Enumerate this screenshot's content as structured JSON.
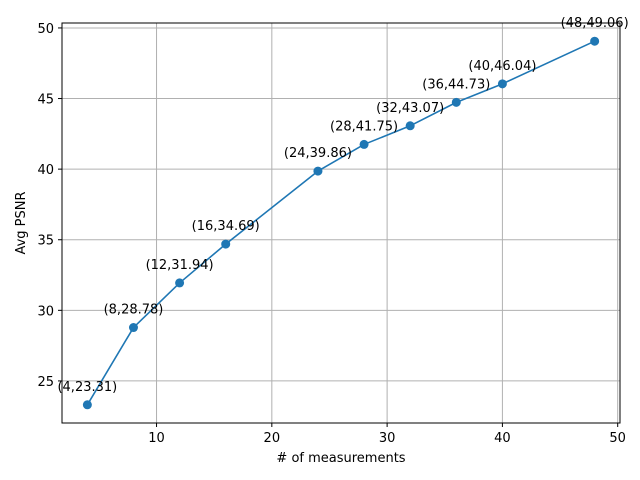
{
  "chart_data": {
    "type": "line",
    "title": "",
    "xlabel": "# of measurements",
    "ylabel": "Avg PSNR",
    "xlim": [
      1.8,
      50.2
    ],
    "ylim": [
      22.02,
      50.35
    ],
    "xticks": [
      10,
      20,
      30,
      40,
      50
    ],
    "yticks": [
      25,
      30,
      35,
      40,
      45,
      50
    ],
    "grid": true,
    "legend": "none",
    "series": [
      {
        "color": "#1f77b4",
        "marker": "circle",
        "points": [
          {
            "x": 4,
            "y": 23.31,
            "label": "(4,23.31)"
          },
          {
            "x": 8,
            "y": 28.78,
            "label": "(8,28.78)"
          },
          {
            "x": 12,
            "y": 31.94,
            "label": "(12,31.94)"
          },
          {
            "x": 16,
            "y": 34.69,
            "label": "(16,34.69)"
          },
          {
            "x": 24,
            "y": 39.86,
            "label": "(24,39.86)"
          },
          {
            "x": 28,
            "y": 41.75,
            "label": "(28,41.75)"
          },
          {
            "x": 32,
            "y": 43.07,
            "label": "(32,43.07)"
          },
          {
            "x": 36,
            "y": 44.73,
            "label": "(36,44.73)"
          },
          {
            "x": 40,
            "y": 46.04,
            "label": "(40,46.04)"
          },
          {
            "x": 48,
            "y": 49.06,
            "label": "(48,49.06)"
          }
        ]
      }
    ]
  }
}
